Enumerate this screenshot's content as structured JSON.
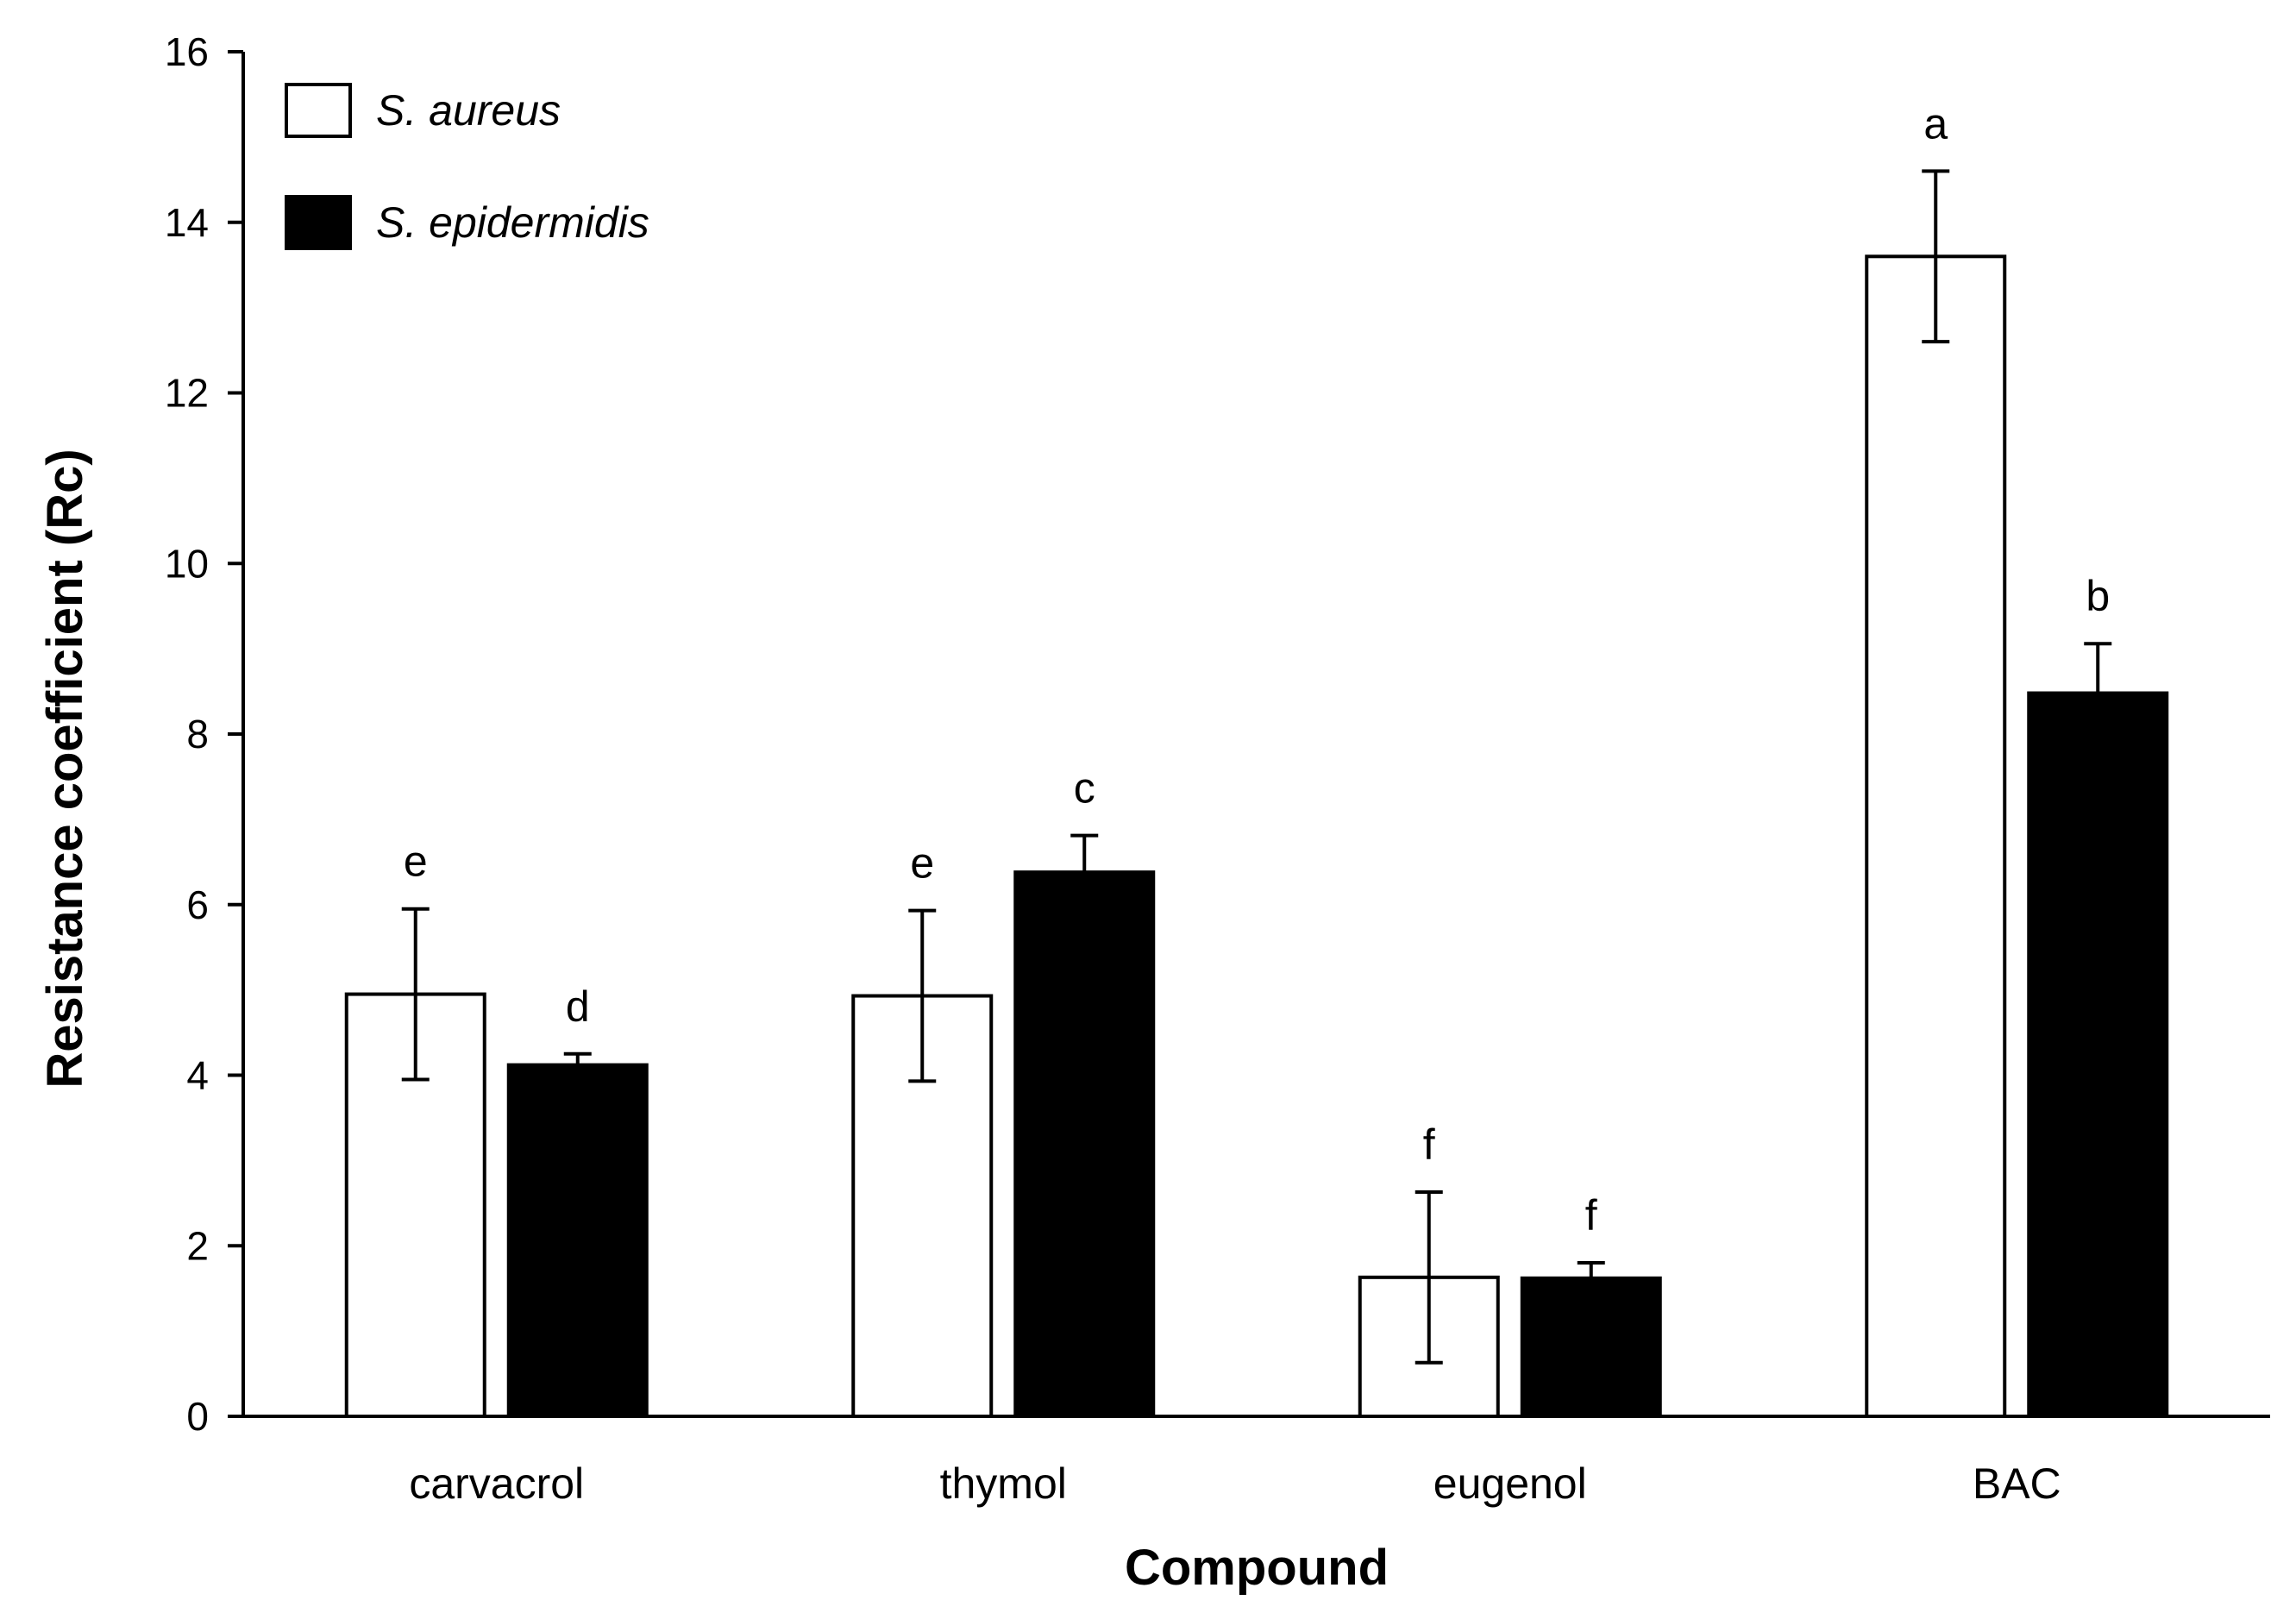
{
  "chart_data": {
    "type": "bar",
    "title": "",
    "xlabel": "Compound",
    "ylabel": "Resistance coefficient (Rc)",
    "ylim": [
      0,
      16
    ],
    "yticks": [
      0,
      2,
      4,
      6,
      8,
      10,
      12,
      14,
      16
    ],
    "grid": false,
    "legend_position": "top-left",
    "categories": [
      "carvacrol",
      "thymol",
      "eugenol",
      "BAC"
    ],
    "series": [
      {
        "name": "S. aureus",
        "fill": "#ffffff",
        "stroke": "#000000",
        "values": [
          4.95,
          4.93,
          1.63,
          13.6
        ],
        "errors": [
          1.0,
          1.0,
          1.0,
          1.0
        ],
        "letters": [
          "e",
          "e",
          "f",
          "a"
        ]
      },
      {
        "name": "S. epidermidis",
        "fill": "#000000",
        "stroke": "#000000",
        "values": [
          4.12,
          6.38,
          1.62,
          8.48
        ],
        "errors": [
          0.13,
          0.43,
          0.18,
          0.58
        ],
        "letters": [
          "d",
          "c",
          "f",
          "b"
        ]
      }
    ]
  }
}
